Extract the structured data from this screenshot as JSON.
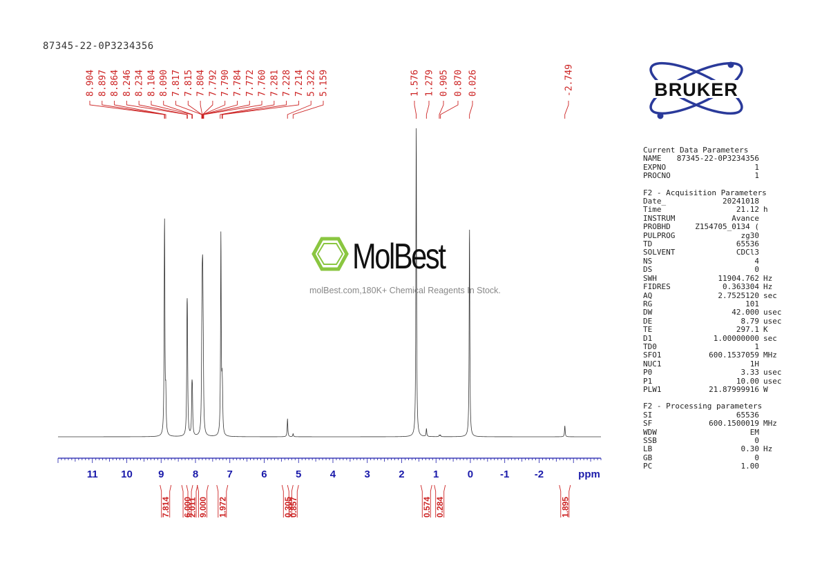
{
  "sample_id": "87345-22-0P3234356",
  "brand": {
    "logo_text": "BRUKER"
  },
  "watermark": {
    "brand": "MolBest",
    "tagline": "molBest.com,180K+ Chemical Reagents In Stock."
  },
  "colors": {
    "peak_labels": "#cc2222",
    "axis": "#1a1aaa",
    "spectrum": "#333333",
    "logo_blue": "#2a3a9a",
    "watermark_green": "#8ac640"
  },
  "chart_data": {
    "type": "line",
    "title": "87345-22-0P3234356",
    "xlabel": "ppm",
    "ylabel": "",
    "x_reversed": true,
    "xlim": [
      12.0,
      -3.8
    ],
    "grid": false,
    "x_ticks": [
      "11",
      "10",
      "9",
      "8",
      "7",
      "6",
      "5",
      "4",
      "3",
      "2",
      "1",
      "0",
      "-1",
      "-2"
    ],
    "peak_labels": [
      "8.904",
      "8.897",
      "8.864",
      "8.246",
      "8.234",
      "8.104",
      "8.090",
      "7.817",
      "7.815",
      "7.804",
      "7.792",
      "7.790",
      "7.784",
      "7.772",
      "7.760",
      "7.281",
      "7.228",
      "7.214",
      "5.322",
      "5.159",
      "1.576",
      "1.279",
      "0.905",
      "0.870",
      "0.026",
      "-2.749"
    ],
    "peaks": [
      {
        "ppm": 8.904,
        "intensity": 0.58
      },
      {
        "ppm": 8.897,
        "intensity": 0.6
      },
      {
        "ppm": 8.864,
        "intensity": 0.18
      },
      {
        "ppm": 8.246,
        "intensity": 0.48
      },
      {
        "ppm": 8.234,
        "intensity": 0.4
      },
      {
        "ppm": 8.104,
        "intensity": 0.2
      },
      {
        "ppm": 8.09,
        "intensity": 0.18
      },
      {
        "ppm": 7.817,
        "intensity": 0.28
      },
      {
        "ppm": 7.804,
        "intensity": 0.46
      },
      {
        "ppm": 7.792,
        "intensity": 0.4
      },
      {
        "ppm": 7.784,
        "intensity": 0.3
      },
      {
        "ppm": 7.772,
        "intensity": 0.22
      },
      {
        "ppm": 7.26,
        "intensity": 1.0
      },
      {
        "ppm": 7.228,
        "intensity": 0.18
      },
      {
        "ppm": 7.214,
        "intensity": 0.15
      },
      {
        "ppm": 5.322,
        "intensity": 0.09
      },
      {
        "ppm": 5.159,
        "intensity": 0.015
      },
      {
        "ppm": 1.576,
        "intensity": 1.55
      },
      {
        "ppm": 1.279,
        "intensity": 0.04
      },
      {
        "ppm": 0.905,
        "intensity": 0.008
      },
      {
        "ppm": 0.87,
        "intensity": 0.008
      },
      {
        "ppm": 0.026,
        "intensity": 1.05
      },
      {
        "ppm": -2.749,
        "intensity": 0.055
      }
    ],
    "integrals": [
      {
        "ppm": 8.87,
        "value": "7.814"
      },
      {
        "ppm": 8.24,
        "value": "6.000"
      },
      {
        "ppm": 8.1,
        "value": "2.011"
      },
      {
        "ppm": 7.79,
        "value": "9.000"
      },
      {
        "ppm": 7.22,
        "value": "1.972"
      },
      {
        "ppm": 5.32,
        "value": "0.305"
      },
      {
        "ppm": 5.16,
        "value": "0.857"
      },
      {
        "ppm": 1.28,
        "value": "0.574"
      },
      {
        "ppm": 0.89,
        "value": "0.284"
      },
      {
        "ppm": -2.75,
        "value": "1.895"
      }
    ]
  },
  "parameters": [
    {
      "title": "Current Data Parameters",
      "rows": [
        {
          "key": "NAME",
          "value": "87345-22-0P3234356",
          "unit": ""
        },
        {
          "key": "EXPNO",
          "value": "1",
          "unit": ""
        },
        {
          "key": "PROCNO",
          "value": "1",
          "unit": ""
        }
      ]
    },
    {
      "title": "F2 - Acquisition Parameters",
      "rows": [
        {
          "key": "Date_",
          "value": "20241018",
          "unit": ""
        },
        {
          "key": "Time",
          "value": "21.12",
          "unit": "h"
        },
        {
          "key": "INSTRUM",
          "value": "Avance",
          "unit": ""
        },
        {
          "key": "PROBHD",
          "value": "Z154705_0134 (",
          "unit": ""
        },
        {
          "key": "PULPROG",
          "value": "zg30",
          "unit": ""
        },
        {
          "key": "TD",
          "value": "65536",
          "unit": ""
        },
        {
          "key": "SOLVENT",
          "value": "CDCl3",
          "unit": ""
        },
        {
          "key": "NS",
          "value": "4",
          "unit": ""
        },
        {
          "key": "DS",
          "value": "0",
          "unit": ""
        },
        {
          "key": "SWH",
          "value": "11904.762",
          "unit": "Hz"
        },
        {
          "key": "FIDRES",
          "value": "0.363304",
          "unit": "Hz"
        },
        {
          "key": "AQ",
          "value": "2.7525120",
          "unit": "sec"
        },
        {
          "key": "RG",
          "value": "101",
          "unit": ""
        },
        {
          "key": "DW",
          "value": "42.000",
          "unit": "usec"
        },
        {
          "key": "DE",
          "value": "8.79",
          "unit": "usec"
        },
        {
          "key": "TE",
          "value": "297.1",
          "unit": "K"
        },
        {
          "key": "D1",
          "value": "1.00000000",
          "unit": "sec"
        },
        {
          "key": "TD0",
          "value": "1",
          "unit": ""
        },
        {
          "key": "SFO1",
          "value": "600.1537059",
          "unit": "MHz"
        },
        {
          "key": "NUC1",
          "value": "1H",
          "unit": ""
        },
        {
          "key": "P0",
          "value": "3.33",
          "unit": "usec"
        },
        {
          "key": "P1",
          "value": "10.00",
          "unit": "usec"
        },
        {
          "key": "PLW1",
          "value": "21.87999916",
          "unit": "W"
        }
      ]
    },
    {
      "title": "F2 - Processing parameters",
      "rows": [
        {
          "key": "SI",
          "value": "65536",
          "unit": ""
        },
        {
          "key": "SF",
          "value": "600.1500019",
          "unit": "MHz"
        },
        {
          "key": "WDW",
          "value": "EM",
          "unit": ""
        },
        {
          "key": "SSB",
          "value": "0",
          "unit": ""
        },
        {
          "key": "LB",
          "value": "0.30",
          "unit": "Hz"
        },
        {
          "key": "GB",
          "value": "0",
          "unit": ""
        },
        {
          "key": "PC",
          "value": "1.00",
          "unit": ""
        }
      ]
    }
  ]
}
